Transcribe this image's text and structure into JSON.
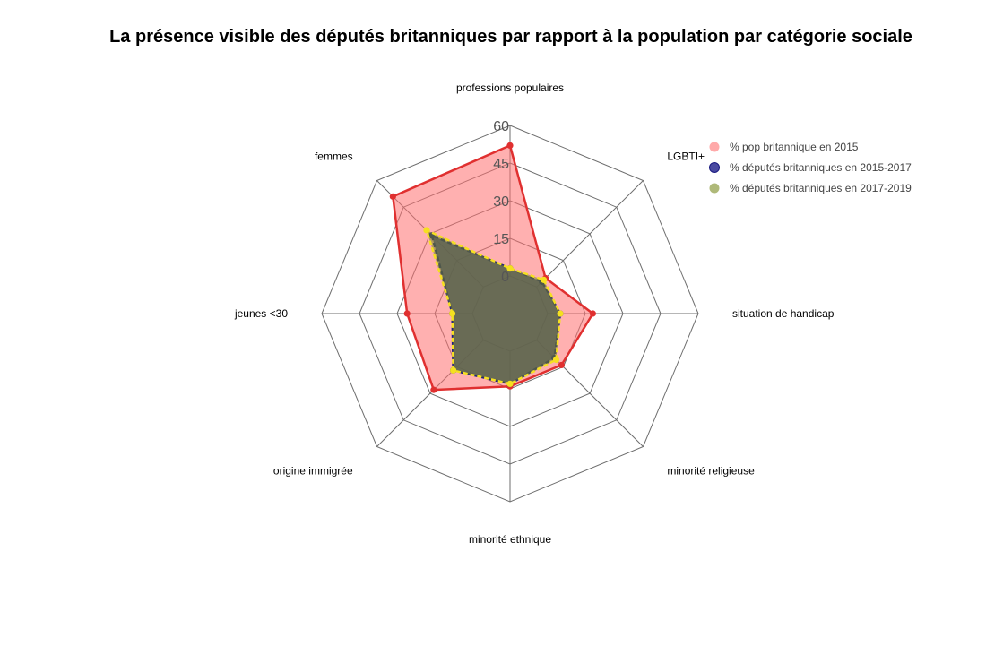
{
  "chart_data": {
    "type": "radar",
    "title": "La présence visible des députés britanniques par rapport à la population par catégorie sociale",
    "categories": [
      "professions populaires",
      "LGBTI+",
      "situation de handicap",
      "minorité religieuse",
      "minorité ethnique",
      "origine immigrée",
      "jeunes <30",
      "femmes"
    ],
    "rlim": [
      0,
      60
    ],
    "ticks": [
      "0",
      "15",
      "30",
      "45",
      "60"
    ],
    "grid": true,
    "legend_position": "top-right",
    "series": [
      {
        "name": "% pop britannique en 2015",
        "values": [
          52,
          5,
          18,
          14,
          14,
          28,
          26,
          51
        ],
        "color": "#e03030",
        "fill": "#ff7070",
        "fill_opacity": 0.55,
        "dashed": false
      },
      {
        "name": "% députés britanniques en 2015-2017",
        "values": [
          3,
          3,
          5,
          10,
          13,
          17,
          8,
          29
        ],
        "color": "#1a1a80",
        "fill": "#2a2a90",
        "fill_opacity": 0.8,
        "dashed": true
      },
      {
        "name": "% députés britanniques en 2017-2019",
        "values": [
          3,
          4,
          5,
          11,
          13,
          17,
          8,
          32
        ],
        "color": "#f5e020",
        "fill": "#7a8a20",
        "fill_opacity": 0.55,
        "dashed": true
      }
    ]
  }
}
